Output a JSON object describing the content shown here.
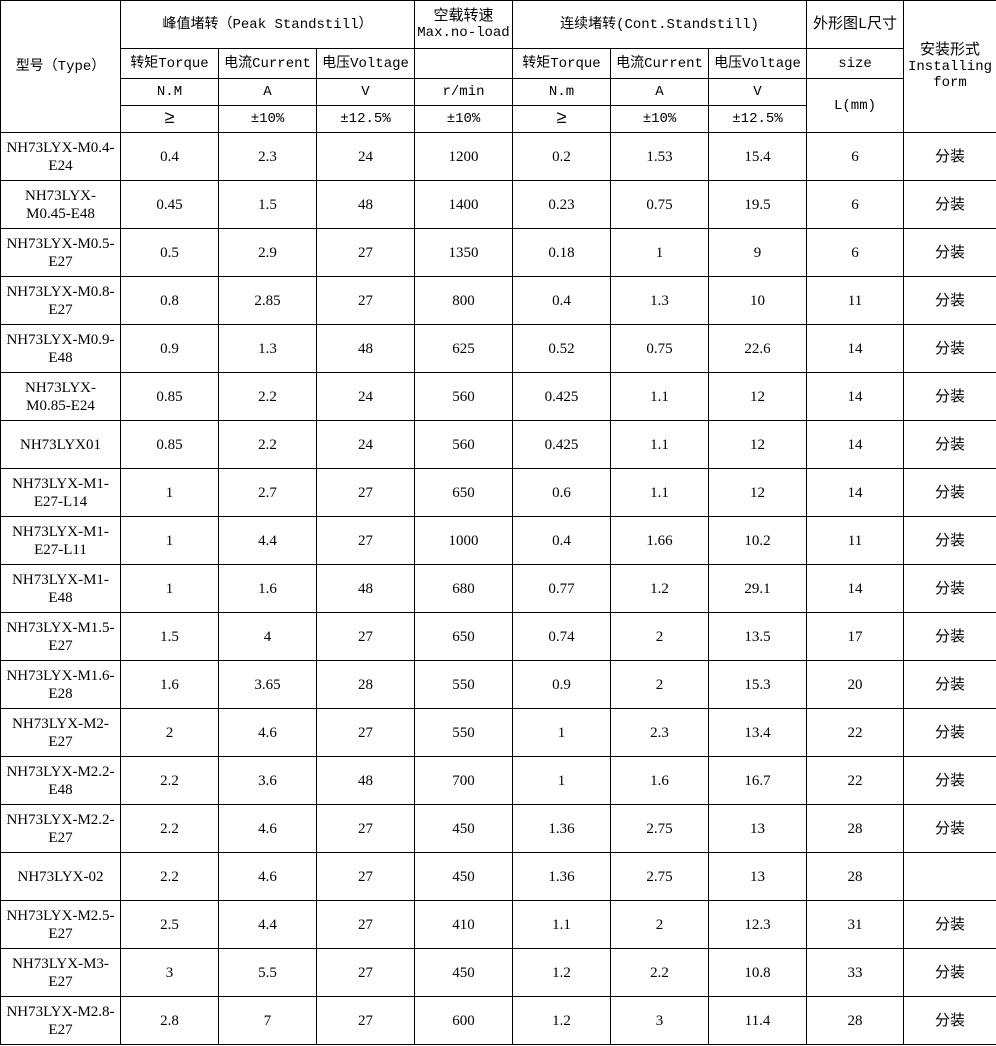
{
  "header": {
    "type": "型号（Type）",
    "peak": "峰值堵转（Peak Standstill）",
    "noload_cn": "空载转速",
    "noload_en": "Max.no-load",
    "cont": "连续堵转(Cont.Standstill)",
    "size_cn": "外形图L尺寸",
    "size_en": "size",
    "size_unit": "L(mm)",
    "install_cn": "安装形式",
    "install_en": "Installing form",
    "torque": "转矩Torque",
    "current": "电流Current",
    "voltage": "电压Voltage",
    "peak_units": [
      "N.M",
      "A",
      "V"
    ],
    "noload_unit": "r/min",
    "cont_units": [
      "N.m",
      "A",
      "V"
    ],
    "peak_tol": [
      "≥",
      "±10%",
      "±12.5%"
    ],
    "noload_tol": "±10%",
    "cont_tol": [
      "≥",
      "±10%",
      "±12.5%"
    ]
  },
  "rows": [
    [
      "NH73LYX-M0.4-E24",
      "0.4",
      "2.3",
      "24",
      "1200",
      "0.2",
      "1.53",
      "15.4",
      "6",
      "分装"
    ],
    [
      "NH73LYX-M0.45-E48",
      "0.45",
      "1.5",
      "48",
      "1400",
      "0.23",
      "0.75",
      "19.5",
      "6",
      "分装"
    ],
    [
      "NH73LYX-M0.5-E27",
      "0.5",
      "2.9",
      "27",
      "1350",
      "0.18",
      "1",
      "9",
      "6",
      "分装"
    ],
    [
      "NH73LYX-M0.8-E27",
      "0.8",
      "2.85",
      "27",
      "800",
      "0.4",
      "1.3",
      "10",
      "11",
      "分装"
    ],
    [
      "NH73LYX-M0.9-E48",
      "0.9",
      "1.3",
      "48",
      "625",
      "0.52",
      "0.75",
      "22.6",
      "14",
      "分装"
    ],
    [
      "NH73LYX-M0.85-E24",
      "0.85",
      "2.2",
      "24",
      "560",
      "0.425",
      "1.1",
      "12",
      "14",
      "分装"
    ],
    [
      "NH73LYX01",
      "0.85",
      "2.2",
      "24",
      "560",
      "0.425",
      "1.1",
      "12",
      "14",
      "分装"
    ],
    [
      "NH73LYX-M1-E27-L14",
      "1",
      "2.7",
      "27",
      "650",
      "0.6",
      "1.1",
      "12",
      "14",
      "分装"
    ],
    [
      "NH73LYX-M1-E27-L11",
      "1",
      "4.4",
      "27",
      "1000",
      "0.4",
      "1.66",
      "10.2",
      "11",
      "分装"
    ],
    [
      "NH73LYX-M1-E48",
      "1",
      "1.6",
      "48",
      "680",
      "0.77",
      "1.2",
      "29.1",
      "14",
      "分装"
    ],
    [
      "NH73LYX-M1.5-E27",
      "1.5",
      "4",
      "27",
      "650",
      "0.74",
      "2",
      "13.5",
      "17",
      "分装"
    ],
    [
      "NH73LYX-M1.6-E28",
      "1.6",
      "3.65",
      "28",
      "550",
      "0.9",
      "2",
      "15.3",
      "20",
      "分装"
    ],
    [
      "NH73LYX-M2-E27",
      "2",
      "4.6",
      "27",
      "550",
      "1",
      "2.3",
      "13.4",
      "22",
      "分装"
    ],
    [
      "NH73LYX-M2.2-E48",
      "2.2",
      "3.6",
      "48",
      "700",
      "1",
      "1.6",
      "16.7",
      "22",
      "分装"
    ],
    [
      "NH73LYX-M2.2-E27",
      "2.2",
      "4.6",
      "27",
      "450",
      "1.36",
      "2.75",
      "13",
      "28",
      "分装"
    ],
    [
      "NH73LYX-02",
      "2.2",
      "4.6",
      "27",
      "450",
      "1.36",
      "2.75",
      "13",
      "28",
      ""
    ],
    [
      "NH73LYX-M2.5-E27",
      "2.5",
      "4.4",
      "27",
      "410",
      "1.1",
      "2",
      "12.3",
      "31",
      "分装"
    ],
    [
      "NH73LYX-M3-E27",
      "3",
      "5.5",
      "27",
      "450",
      "1.2",
      "2.2",
      "10.8",
      "33",
      "分装"
    ],
    [
      "NH73LYX-M2.8-E27",
      "2.8",
      "7",
      "27",
      "600",
      "1.2",
      "3",
      "11.4",
      "28",
      "分装"
    ]
  ]
}
